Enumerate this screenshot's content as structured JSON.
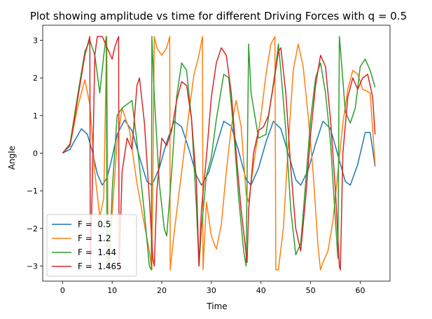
{
  "chart_data": {
    "type": "line",
    "title": "Plot showing amplitude vs time for different Driving Forces with q = 0.5",
    "xlabel": "Time",
    "ylabel": "Angle",
    "xlim": [
      -4,
      66
    ],
    "ylim": [
      -3.4,
      3.4
    ],
    "xticks": [
      0,
      10,
      20,
      30,
      40,
      50,
      60
    ],
    "yticks": [
      -3,
      -2,
      -1,
      0,
      1,
      2,
      3
    ],
    "legend_position": "lower-left",
    "series": [
      {
        "name": "F =  0.5",
        "color": "#1f77b4",
        "points": [
          [
            0,
            0
          ],
          [
            1.5,
            0.1
          ],
          [
            2.5,
            0.35
          ],
          [
            3.8,
            0.65
          ],
          [
            5,
            0.5
          ],
          [
            6,
            0.05
          ],
          [
            7,
            -0.55
          ],
          [
            8,
            -0.85
          ],
          [
            9,
            -0.65
          ],
          [
            10,
            -0.1
          ],
          [
            11,
            0.5
          ],
          [
            12.5,
            0.88
          ],
          [
            14,
            0.6
          ],
          [
            15.5,
            -0.1
          ],
          [
            17,
            -0.75
          ],
          [
            18,
            -0.85
          ],
          [
            19.5,
            -0.4
          ],
          [
            21,
            0.3
          ],
          [
            22.5,
            0.85
          ],
          [
            24,
            0.7
          ],
          [
            25.5,
            0.1
          ],
          [
            27,
            -0.6
          ],
          [
            28,
            -0.85
          ],
          [
            29.5,
            -0.5
          ],
          [
            31,
            0.2
          ],
          [
            32.5,
            0.85
          ],
          [
            34,
            0.72
          ],
          [
            35.5,
            0.05
          ],
          [
            37,
            -0.7
          ],
          [
            38,
            -0.85
          ],
          [
            39.5,
            -0.4
          ],
          [
            41,
            0.3
          ],
          [
            42.5,
            0.85
          ],
          [
            44,
            0.65
          ],
          [
            45.5,
            0
          ],
          [
            47,
            -0.7
          ],
          [
            48,
            -0.85
          ],
          [
            49.5,
            -0.45
          ],
          [
            51,
            0.25
          ],
          [
            52.5,
            0.85
          ],
          [
            54,
            0.65
          ],
          [
            55.5,
            -0.05
          ],
          [
            57,
            -0.75
          ],
          [
            58,
            -0.85
          ],
          [
            59.5,
            -0.3
          ],
          [
            61,
            0.55
          ],
          [
            62,
            0.55
          ],
          [
            63,
            -0.35
          ]
        ]
      },
      {
        "name": "F =  1.2",
        "color": "#ff7f0e",
        "points": [
          [
            0,
            0
          ],
          [
            1.5,
            0.2
          ],
          [
            3,
            1.2
          ],
          [
            4.5,
            1.95
          ],
          [
            5.5,
            1.3
          ],
          [
            6.5,
            -0.5
          ],
          [
            7.5,
            -1.7
          ],
          [
            8.3,
            -1.2
          ],
          [
            8.9,
            3.1
          ],
          [
            9.2,
            -3.1
          ],
          [
            10,
            -1.6
          ],
          [
            11,
            0.3
          ],
          [
            12,
            1.2
          ],
          [
            13.5,
            0.6
          ],
          [
            15,
            -0.8
          ],
          [
            16.5,
            -1.9
          ],
          [
            17.5,
            -2.6
          ],
          [
            18,
            -3.1
          ],
          [
            18.5,
            3.1
          ],
          [
            19,
            2.8
          ],
          [
            20,
            2.6
          ],
          [
            21,
            2.8
          ],
          [
            21.6,
            3.1
          ],
          [
            21.7,
            -3.1
          ],
          [
            22.5,
            -2.1
          ],
          [
            24,
            -0.5
          ],
          [
            25.5,
            1.1
          ],
          [
            26.5,
            2.1
          ],
          [
            27.5,
            2.6
          ],
          [
            28.2,
            3.1
          ],
          [
            28.3,
            -3.1
          ],
          [
            29,
            -1.3
          ],
          [
            30,
            -2.2
          ],
          [
            31,
            -2.55
          ],
          [
            32,
            -1.9
          ],
          [
            33,
            -0.5
          ],
          [
            34,
            0.7
          ],
          [
            35,
            1.4
          ],
          [
            36,
            0.7
          ],
          [
            37,
            -1.1
          ],
          [
            37.5,
            -1.3
          ],
          [
            38.5,
            -0.3
          ],
          [
            40,
            1.0
          ],
          [
            41,
            2.1
          ],
          [
            42,
            2.9
          ],
          [
            42.8,
            3.1
          ],
          [
            43,
            -3.1
          ],
          [
            43.5,
            -3.1
          ],
          [
            44.5,
            -2
          ],
          [
            45.5,
            0.2
          ],
          [
            46.5,
            2.2
          ],
          [
            47.5,
            2.9
          ],
          [
            48.5,
            2.3
          ],
          [
            49.5,
            1.0
          ],
          [
            50.5,
            -0.5
          ],
          [
            51.5,
            -2.5
          ],
          [
            52,
            -3.1
          ],
          [
            52.5,
            -2.9
          ],
          [
            53.5,
            -2.6
          ],
          [
            54.5,
            -1.8
          ],
          [
            55.5,
            -0.5
          ],
          [
            56.5,
            0.8
          ],
          [
            57.5,
            1.7
          ],
          [
            58.5,
            2.2
          ],
          [
            59.5,
            2.1
          ],
          [
            60.5,
            1.7
          ],
          [
            62,
            1.6
          ],
          [
            63,
            -0.3
          ]
        ]
      },
      {
        "name": "F =  1.44",
        "color": "#2ca02c",
        "points": [
          [
            0,
            0
          ],
          [
            1.5,
            0.25
          ],
          [
            3,
            1.5
          ],
          [
            4.5,
            2.7
          ],
          [
            5.5,
            3.0
          ],
          [
            6.5,
            2.6
          ],
          [
            7.5,
            1.6
          ],
          [
            8.3,
            2.6
          ],
          [
            8.8,
            3.1
          ],
          [
            9.0,
            -3.1
          ],
          [
            9.5,
            -3.0
          ],
          [
            10,
            -1.0
          ],
          [
            11,
            1.0
          ],
          [
            12,
            1.2
          ],
          [
            13,
            1.3
          ],
          [
            14,
            1.4
          ],
          [
            15,
            0.3
          ],
          [
            16.5,
            -1.6
          ],
          [
            17.5,
            -3.0
          ],
          [
            17.9,
            -3.1
          ],
          [
            18,
            3.1
          ],
          [
            18.5,
            1.5
          ],
          [
            19.5,
            -0.8
          ],
          [
            20.5,
            -2.0
          ],
          [
            21,
            -2.2
          ],
          [
            22,
            -0.5
          ],
          [
            23,
            1.5
          ],
          [
            24,
            2.4
          ],
          [
            25,
            2.2
          ],
          [
            26,
            0.9
          ],
          [
            27,
            -1.5
          ],
          [
            27.5,
            -3.0
          ],
          [
            28,
            -2.0
          ],
          [
            29,
            -0.6
          ],
          [
            30,
            -0.1
          ],
          [
            31,
            0.9
          ],
          [
            32.5,
            2.1
          ],
          [
            33.5,
            2.0
          ],
          [
            34.5,
            0.6
          ],
          [
            35.5,
            -1.2
          ],
          [
            36.5,
            -2.6
          ],
          [
            37,
            -3.0
          ],
          [
            37.5,
            2.9
          ],
          [
            38,
            1.6
          ],
          [
            39.5,
            0.4
          ],
          [
            41,
            0.5
          ],
          [
            42,
            1.4
          ],
          [
            43,
            2.3
          ],
          [
            43.5,
            2.9
          ],
          [
            44,
            2.2
          ],
          [
            45,
            0.6
          ],
          [
            46,
            -1.5
          ],
          [
            47,
            -2.7
          ],
          [
            48,
            -2.4
          ],
          [
            49,
            -0.8
          ],
          [
            50,
            0.9
          ],
          [
            51,
            2.0
          ],
          [
            52,
            2.4
          ],
          [
            53,
            1.6
          ],
          [
            54,
            0.3
          ],
          [
            55,
            -1.8
          ],
          [
            55.5,
            -2.8
          ],
          [
            55.8,
            3.1
          ],
          [
            56,
            2.8
          ],
          [
            57,
            1.1
          ],
          [
            58,
            0.8
          ],
          [
            59,
            1.2
          ],
          [
            60,
            2.3
          ],
          [
            61,
            2.5
          ],
          [
            62,
            2.2
          ],
          [
            63,
            1.75
          ]
        ]
      },
      {
        "name": "F =  1.465",
        "color": "#d62728",
        "points": [
          [
            0,
            0
          ],
          [
            1.5,
            0.2
          ],
          [
            3,
            1.4
          ],
          [
            4.5,
            2.6
          ],
          [
            5.5,
            3.1
          ],
          [
            5.6,
            -3.1
          ],
          [
            6,
            -0.8
          ],
          [
            6.5,
            2.6
          ],
          [
            7,
            3.1
          ],
          [
            8,
            3.1
          ],
          [
            9,
            2.8
          ],
          [
            10,
            2.5
          ],
          [
            10.5,
            2.8
          ],
          [
            11,
            3.0
          ],
          [
            11.3,
            3.1
          ],
          [
            11.4,
            -3.1
          ],
          [
            12,
            -0.5
          ],
          [
            13,
            0.4
          ],
          [
            14,
            0.1
          ],
          [
            15,
            1.8
          ],
          [
            15.5,
            2.0
          ],
          [
            16.5,
            0.8
          ],
          [
            17.5,
            -1.2
          ],
          [
            18.2,
            -2.8
          ],
          [
            18.5,
            -3.0
          ],
          [
            19,
            -1.0
          ],
          [
            20,
            0.4
          ],
          [
            21,
            0.2
          ],
          [
            22,
            0.6
          ],
          [
            23,
            1.4
          ],
          [
            24,
            1.9
          ],
          [
            25,
            1.8
          ],
          [
            26,
            0.9
          ],
          [
            27,
            -0.8
          ],
          [
            27.5,
            -3.0
          ],
          [
            28,
            -1.5
          ],
          [
            29,
            -0.1
          ],
          [
            30,
            1.5
          ],
          [
            31,
            2.4
          ],
          [
            32,
            2.8
          ],
          [
            33,
            2.6
          ],
          [
            34,
            1.6
          ],
          [
            35,
            0
          ],
          [
            36,
            -1.5
          ],
          [
            37.2,
            -2.9
          ],
          [
            37.5,
            -1.5
          ],
          [
            38.5,
            0
          ],
          [
            39.5,
            0.6
          ],
          [
            40.5,
            0.7
          ],
          [
            41.5,
            1.0
          ],
          [
            42.5,
            1.8
          ],
          [
            43.5,
            2.7
          ],
          [
            44,
            2.8
          ],
          [
            45,
            1.6
          ],
          [
            46,
            -0.4
          ],
          [
            47,
            -2.0
          ],
          [
            48,
            -2.6
          ],
          [
            49,
            -1.2
          ],
          [
            50,
            0.5
          ],
          [
            51,
            1.8
          ],
          [
            52,
            2.6
          ],
          [
            53,
            2.3
          ],
          [
            54,
            0.9
          ],
          [
            55,
            -1.0
          ],
          [
            55.8,
            -3.0
          ],
          [
            56,
            -3.1
          ],
          [
            56.5,
            0
          ],
          [
            57.5,
            1.5
          ],
          [
            58.5,
            2.0
          ],
          [
            59.5,
            1.7
          ],
          [
            60.5,
            2.0
          ],
          [
            61.5,
            2.1
          ],
          [
            62.5,
            1.5
          ],
          [
            63,
            0.5
          ]
        ]
      }
    ]
  }
}
